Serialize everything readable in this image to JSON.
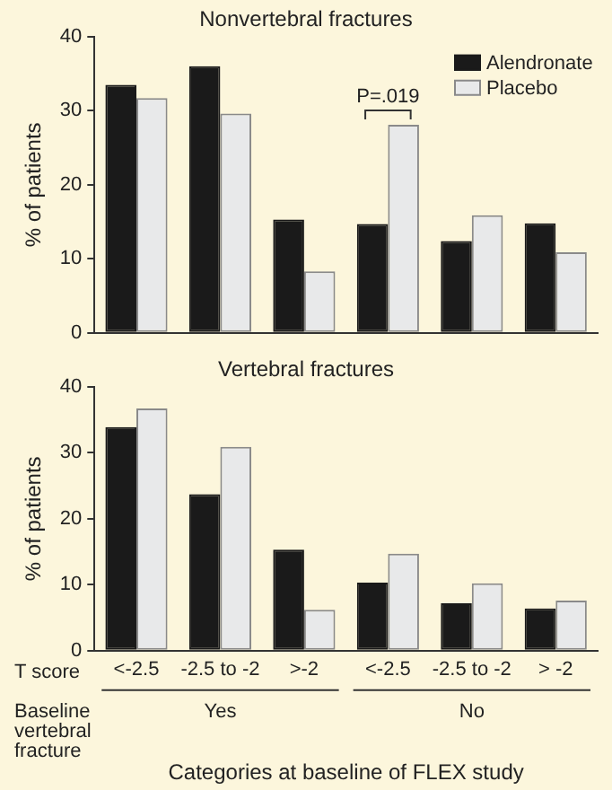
{
  "chart_data": [
    {
      "type": "bar",
      "title": "Nonvertebral fractures",
      "ylabel": "% of patients",
      "categories": [
        null,
        null,
        null,
        null,
        null,
        null
      ],
      "series": [
        {
          "name": "Alendronate",
          "color": "#1a1a1a",
          "values": [
            33.5,
            36.0,
            15.3,
            14.7,
            12.4,
            14.8
          ]
        },
        {
          "name": "Placebo",
          "color": "#e8e9ea",
          "values": [
            31.7,
            29.6,
            8.3,
            28.1,
            15.9,
            10.9
          ]
        }
      ],
      "ylim": [
        0,
        40
      ],
      "yticks": [
        0,
        10,
        20,
        30,
        40
      ],
      "grid": false,
      "legend": "top right",
      "tick_labels": "y",
      "annotations": [
        "P=.019"
      ]
    },
    {
      "type": "bar",
      "title": "Vertebral fractures",
      "ylabel": "% of patients",
      "xlabel": "Categories at baseline of FLEX study",
      "categories": [
        "<-2.5",
        "-2.5 to -2",
        ">-2",
        "<-2.5",
        "-2.5 to -2",
        "> -2"
      ],
      "series": [
        {
          "color": "#1a1a1a",
          "values": [
            33.9,
            23.7,
            15.3,
            10.3,
            7.2,
            6.4
          ]
        },
        {
          "color": "#e8e9ea",
          "values": [
            36.7,
            30.9,
            6.2,
            14.7,
            10.2,
            7.6
          ]
        }
      ],
      "ylim": [
        0,
        40
      ],
      "yticks": [
        0,
        10,
        20,
        30,
        40
      ],
      "grid": false,
      "annotations": [
        "T score",
        "Baseline vertebral fracture",
        "Yes",
        "No"
      ]
    }
  ]
}
